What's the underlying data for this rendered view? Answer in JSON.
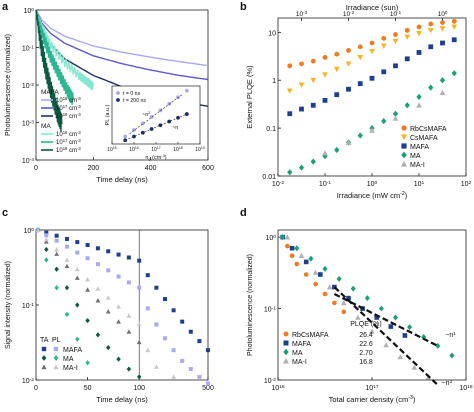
{
  "chart_data": [
    {
      "panel": "a",
      "type": "line",
      "xlabel": "Time delay (ns)",
      "ylabel": "Photoluminescence (normalized)",
      "xlim": [
        0,
        600
      ],
      "ylim_log10": [
        -4,
        0
      ],
      "x_ticks": [
        "0",
        "200",
        "400",
        "600"
      ],
      "y_ticks": [
        "10^-4",
        "10^-3",
        "10^-2",
        "10^-1",
        "10^0"
      ],
      "legend_groups": [
        {
          "title": "MAFA",
          "entries": [
            "10^16 cm^-3",
            "10^17 cm^-3",
            "10^18 cm^-3"
          ]
        },
        {
          "title": "MA",
          "entries": [
            "10^16 cm^-3",
            "10^17 cm^-3",
            "10^18 cm^-3"
          ]
        }
      ],
      "series": [
        {
          "group": "MAFA",
          "label": "10^16 cm^-3",
          "color": "#a9a9f2",
          "noise": 0,
          "x": [
            0,
            20,
            50,
            100,
            200,
            300,
            400,
            500,
            600
          ],
          "y": [
            1.0,
            0.55,
            0.33,
            0.2,
            0.11,
            0.075,
            0.055,
            0.042,
            0.033
          ]
        },
        {
          "group": "MAFA",
          "label": "10^17 cm^-3",
          "color": "#5a5ac8",
          "noise": 0,
          "x": [
            0,
            20,
            50,
            100,
            200,
            300,
            400,
            500,
            600
          ],
          "y": [
            1.0,
            0.45,
            0.24,
            0.13,
            0.06,
            0.037,
            0.025,
            0.018,
            0.014
          ]
        },
        {
          "group": "MAFA",
          "label": "10^18 cm^-3",
          "color": "#1d2f6e",
          "noise": 0,
          "x": [
            0,
            20,
            50,
            100,
            200,
            300,
            400,
            500,
            600
          ],
          "y": [
            1.0,
            0.3,
            0.12,
            0.05,
            0.018,
            0.009,
            0.0055,
            0.0037,
            0.0027
          ]
        },
        {
          "group": "MA",
          "label": "10^16 cm^-3",
          "color": "#86e8d0",
          "noise": 0.12,
          "x": [
            0,
            20,
            50,
            100,
            150,
            180,
            200
          ],
          "y": [
            1.0,
            0.35,
            0.12,
            0.04,
            0.018,
            0.012,
            0.009
          ]
        },
        {
          "group": "MA",
          "label": "10^17 cm^-3",
          "color": "#2ab893",
          "noise": 0.18,
          "x": [
            0,
            20,
            50,
            80,
            110,
            130
          ],
          "y": [
            1.0,
            0.25,
            0.06,
            0.02,
            0.007,
            0.004
          ]
        },
        {
          "group": "MA",
          "label": "10^18 cm^-3",
          "color": "#0d5a42",
          "noise": 0.25,
          "x": [
            0,
            15,
            35,
            55,
            75,
            90
          ],
          "y": [
            1.0,
            0.15,
            0.025,
            0.006,
            0.0018,
            0.0009
          ]
        }
      ],
      "inset": {
        "xlabel": "n0 (cm^-3)",
        "ylabel": "PL (a.u.)",
        "x_ticks": [
          "10^15",
          "10^16",
          "10^17",
          "10^18",
          "10^19"
        ],
        "legend": [
          "t = 0 ns",
          "t = 200 ns"
        ],
        "annotations": [
          "~n^2",
          "~n"
        ],
        "series": [
          {
            "label": "t = 0 ns",
            "color": "#a9a9f2",
            "x_log10": [
              15.6,
              16.0,
              16.4,
              16.8,
              17.2,
              17.6,
              18.0,
              18.4
            ],
            "y_log10": [
              -3.2,
              -2.5,
              -1.8,
              -1.1,
              -0.4,
              0.3,
              1.0,
              1.7
            ]
          },
          {
            "label": "t = 200 ns",
            "color": "#1d2f6e",
            "x_log10": [
              15.6,
              16.0,
              16.4,
              16.8,
              17.2,
              17.6,
              18.0,
              18.4
            ],
            "y_log10": [
              -3.6,
              -3.2,
              -2.8,
              -2.4,
              -2.0,
              -1.6,
              -1.2,
              -0.8
            ]
          }
        ]
      }
    },
    {
      "panel": "b",
      "type": "scatter",
      "xlabel": "Irradiance (mW cm^-2)",
      "x2label": "Irradiance (sun)",
      "ylabel": "External PLQE (%)",
      "xlim_log10": [
        -2,
        2
      ],
      "ylim_log10": [
        -2,
        1.3
      ],
      "x_ticks": [
        "10^-2",
        "10^-1",
        "10^0",
        "10^1",
        "10^2"
      ],
      "x2_ticks": [
        "10^-3",
        "10^-2",
        "10^-1",
        "10^0"
      ],
      "y_ticks": [
        "0.01",
        "0.1",
        "1",
        "10"
      ],
      "series": [
        {
          "name": "RbCsMAFA",
          "color": "#f07a1f",
          "marker": "circle",
          "x_log10": [
            -1.75,
            -1.5,
            -1.25,
            -1.0,
            -0.75,
            -0.5,
            -0.25,
            0.0,
            0.25,
            0.5,
            0.75,
            1.0,
            1.25,
            1.5,
            1.75
          ],
          "y": [
            2.0,
            2.2,
            2.5,
            3.0,
            3.5,
            4.2,
            5.0,
            6.0,
            7.5,
            9.0,
            11,
            13,
            15,
            16,
            17
          ]
        },
        {
          "name": "CsMAFA",
          "color": "#f4b51e",
          "marker": "triangle-down",
          "x_log10": [
            -1.75,
            -1.5,
            -1.25,
            -1.0,
            -0.75,
            -0.5,
            -0.25,
            0.0,
            0.25,
            0.5,
            0.75,
            1.0,
            1.25,
            1.5,
            1.75
          ],
          "y": [
            0.6,
            0.8,
            1.0,
            1.3,
            1.7,
            2.2,
            3.0,
            4.0,
            5.2,
            6.5,
            8.0,
            9.5,
            11,
            12,
            13
          ]
        },
        {
          "name": "MAFA",
          "color": "#1c3f8e",
          "marker": "square",
          "x_log10": [
            -1.75,
            -1.5,
            -1.25,
            -1.0,
            -0.75,
            -0.5,
            -0.25,
            0.0,
            0.25,
            0.5,
            0.75,
            1.0,
            1.25,
            1.5,
            1.75
          ],
          "y": [
            0.2,
            0.25,
            0.3,
            0.38,
            0.5,
            0.65,
            0.85,
            1.1,
            1.5,
            2.0,
            2.8,
            3.8,
            5.0,
            6.0,
            7.0
          ]
        },
        {
          "name": "MA",
          "color": "#1aa07c",
          "marker": "diamond",
          "x_log10": [
            -1.75,
            -1.5,
            -1.25,
            -1.0,
            -0.75,
            -0.5,
            -0.25,
            0.0,
            0.25,
            0.5,
            0.75,
            1.0,
            1.25,
            1.5,
            1.75
          ],
          "y": [
            0.012,
            0.015,
            0.02,
            0.026,
            0.035,
            0.05,
            0.07,
            0.1,
            0.14,
            0.2,
            0.3,
            0.45,
            0.7,
            1.0,
            1.4
          ]
        },
        {
          "name": "MA-I",
          "color": "#b0b0b0",
          "marker": "triangle-up",
          "x_log10": [
            -1.0,
            -0.5,
            0.0,
            0.5,
            1.0,
            1.5
          ],
          "y": [
            0.03,
            0.05,
            0.09,
            0.16,
            0.3,
            0.55
          ]
        }
      ]
    },
    {
      "panel": "c",
      "type": "scatter",
      "xlabel": "Time delay (ns)",
      "ylabel": "Signal intensity (normalized)",
      "ylim_log10": [
        -2,
        0
      ],
      "x_ticks": [
        "0",
        "50",
        "100",
        "500"
      ],
      "y_ticks": [
        "10^-2",
        "10^-1",
        "10^0"
      ],
      "legend_header": [
        "TA",
        "PL"
      ],
      "legend": [
        {
          "label": "MAFA",
          "ta_color": "#1c3f8e",
          "pl_color": "#a9a9f2",
          "marker": "square"
        },
        {
          "label": "MA",
          "ta_color": "#0d5a42",
          "pl_color": "#2ab893",
          "marker": "diamond"
        },
        {
          "label": "MA-I",
          "ta_color": "#707070",
          "pl_color": "#c8c8c8",
          "marker": "triangle-up"
        }
      ],
      "series": [
        {
          "name": "MAFA TA",
          "color": "#1c3f8e",
          "marker": "square",
          "x": [
            2,
            10,
            20,
            30,
            40,
            50,
            60,
            70,
            80,
            90,
            100,
            150,
            200,
            250,
            300,
            350,
            400,
            450,
            500
          ],
          "y": [
            1.0,
            0.92,
            0.84,
            0.76,
            0.69,
            0.63,
            0.57,
            0.52,
            0.47,
            0.43,
            0.39,
            0.25,
            0.17,
            0.12,
            0.085,
            0.06,
            0.044,
            0.033,
            0.025
          ]
        },
        {
          "name": "MAFA PL",
          "color": "#a9a9f2",
          "marker": "square",
          "x": [
            2,
            10,
            20,
            30,
            40,
            50,
            60,
            70,
            80,
            90,
            100,
            150,
            200,
            250,
            300,
            350,
            400,
            450,
            500
          ],
          "y": [
            1.0,
            0.85,
            0.72,
            0.6,
            0.5,
            0.42,
            0.35,
            0.29,
            0.24,
            0.2,
            0.17,
            0.09,
            0.055,
            0.036,
            0.025,
            0.018,
            0.014,
            0.011,
            0.009
          ]
        },
        {
          "name": "MA TA",
          "color": "#0d5a42",
          "marker": "diamond",
          "x": [
            2,
            10,
            20,
            30,
            40,
            50,
            60,
            70,
            80,
            90,
            100
          ],
          "y": [
            1.0,
            0.55,
            0.3,
            0.17,
            0.1,
            0.062,
            0.04,
            0.027,
            0.019,
            0.014,
            0.011
          ]
        },
        {
          "name": "MA PL",
          "color": "#2ab893",
          "marker": "diamond",
          "x": [
            2,
            10,
            20,
            30,
            40,
            50
          ],
          "y": [
            1.0,
            0.4,
            0.17,
            0.075,
            0.035,
            0.017
          ]
        },
        {
          "name": "MA-I TA",
          "color": "#707070",
          "marker": "triangle-up",
          "x": [
            2,
            10,
            20,
            30,
            40,
            50,
            60,
            70,
            80,
            90,
            100
          ],
          "y": [
            1.0,
            0.7,
            0.48,
            0.33,
            0.23,
            0.16,
            0.115,
            0.082,
            0.06,
            0.044,
            0.032
          ]
        },
        {
          "name": "MA-I PL",
          "color": "#c8c8c8",
          "marker": "triangle-up",
          "x": [
            2,
            10,
            20,
            30,
            40,
            50,
            60,
            70,
            80,
            90,
            100,
            150,
            200,
            300
          ],
          "y": [
            1.0,
            0.75,
            0.55,
            0.4,
            0.3,
            0.22,
            0.165,
            0.125,
            0.095,
            0.072,
            0.056,
            0.025,
            0.015,
            0.011
          ]
        }
      ]
    },
    {
      "panel": "d",
      "type": "scatter",
      "xlabel": "Total carrier density (cm^-3)",
      "ylabel": "Photoluminescence (normalized)",
      "xlim_log10": [
        16,
        18
      ],
      "ylim_log10": [
        -2,
        0.1
      ],
      "x_ticks": [
        "10^16",
        "10^17",
        "10^18"
      ],
      "y_ticks": [
        "10^-2",
        "10^-1",
        "10^0"
      ],
      "legend_title": "PLQE (%)",
      "legend": [
        {
          "name": "RbCsMAFA",
          "plqe": "26.4",
          "color": "#f07a1f",
          "marker": "circle"
        },
        {
          "name": "MAFA",
          "plqe": "22.6",
          "color": "#1c3f8e",
          "marker": "square"
        },
        {
          "name": "MA",
          "plqe": "2.70",
          "color": "#1aa07c",
          "marker": "diamond"
        },
        {
          "name": "MA-I",
          "plqe": "16.8",
          "color": "#b0b0b0",
          "marker": "triangle-up"
        }
      ],
      "annotations": [
        "~n^1",
        "~n^2"
      ],
      "series": [
        {
          "name": "RbCsMAFA",
          "color": "#f07a1f",
          "marker": "circle",
          "x_log10": [
            16.05,
            16.1,
            16.15,
            16.2,
            16.3,
            16.4,
            16.5,
            16.6,
            16.7
          ],
          "y": [
            1.0,
            0.75,
            0.55,
            0.42,
            0.3,
            0.22,
            0.16,
            0.12,
            0.09
          ]
        },
        {
          "name": "MAFA",
          "color": "#1c3f8e",
          "marker": "square",
          "x_log10": [
            16.05,
            16.15,
            16.3,
            16.45,
            16.6,
            16.75,
            16.9,
            17.05,
            17.2,
            17.35
          ],
          "y": [
            1.0,
            0.7,
            0.45,
            0.3,
            0.2,
            0.14,
            0.1,
            0.075,
            0.056,
            0.042
          ]
        },
        {
          "name": "MA",
          "color": "#1aa07c",
          "marker": "diamond",
          "x_log10": [
            16.05,
            16.2,
            16.35,
            16.5,
            16.65,
            16.8,
            16.95,
            17.1,
            17.25,
            17.4,
            17.55,
            17.7,
            17.85
          ],
          "y": [
            1.0,
            0.7,
            0.5,
            0.36,
            0.26,
            0.19,
            0.14,
            0.1,
            0.075,
            0.055,
            0.04,
            0.03,
            0.022
          ]
        },
        {
          "name": "MA-I",
          "color": "#b0b0b0",
          "marker": "triangle-up",
          "x_log10": [
            16.1,
            16.25,
            16.4,
            16.55,
            16.7,
            16.85,
            17.0,
            17.15,
            17.3,
            17.45,
            17.6
          ],
          "y": [
            1.0,
            0.55,
            0.32,
            0.2,
            0.12,
            0.075,
            0.048,
            0.031,
            0.021,
            0.015,
            0.011
          ]
        }
      ]
    }
  ]
}
